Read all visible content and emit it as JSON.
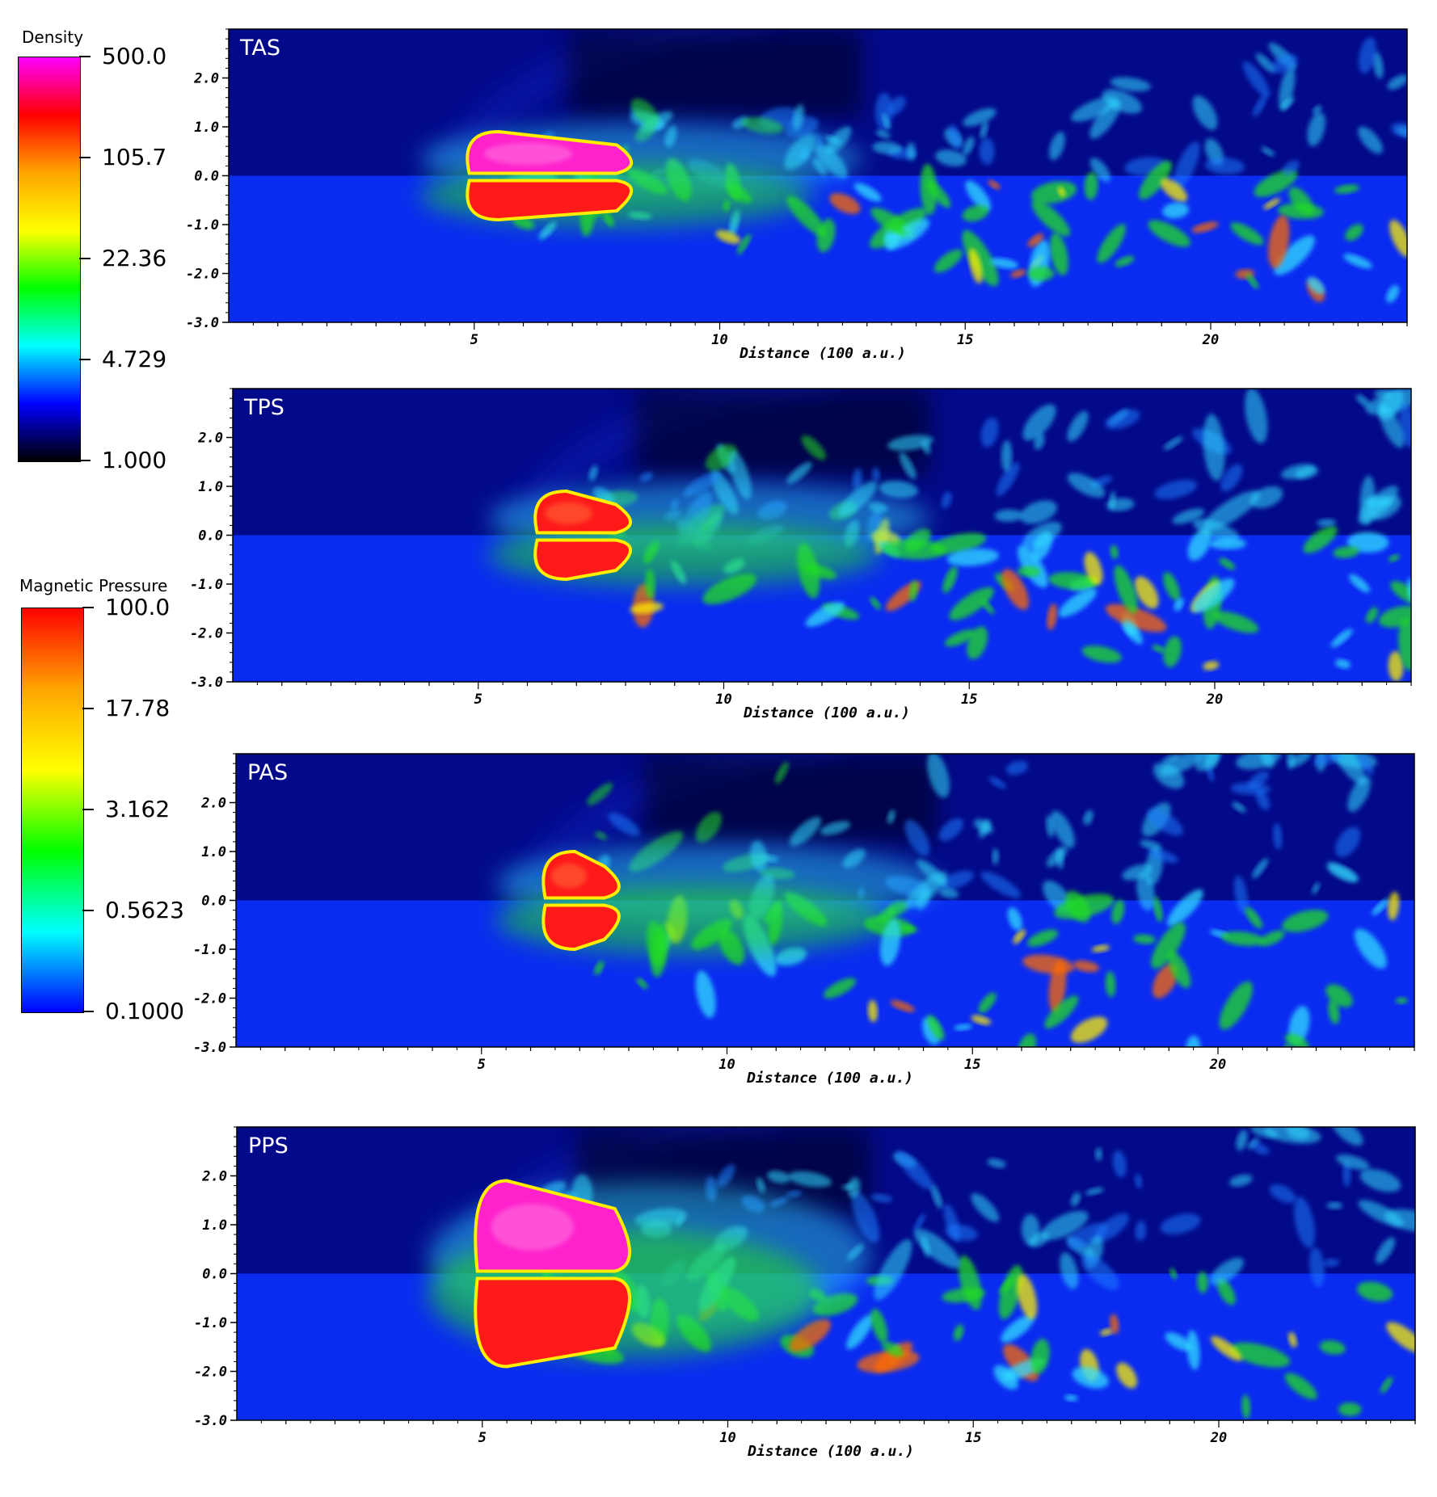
{
  "colorbars": [
    {
      "title": "Density",
      "labels": [
        "500.0",
        "105.7",
        "22.36",
        "4.729",
        "1.000"
      ],
      "stops": [
        "#ff00ff",
        "#ff0000",
        "#ffa500",
        "#ffff00",
        "#00ff00",
        "#00ffff",
        "#0000ff",
        "#000000"
      ]
    },
    {
      "title": "Magnetic Pressure",
      "labels": [
        "100.0",
        "17.78",
        "3.162",
        "0.5623",
        "0.1000"
      ],
      "stops": [
        "#ff0000",
        "#ffa500",
        "#ffff00",
        "#00ff00",
        "#00ffff",
        "#0000ff"
      ]
    }
  ],
  "axis": {
    "y_ticks": [
      "2.0",
      "1.0",
      "0.0",
      "-1.0",
      "-2.0",
      "-3.0"
    ],
    "x_ticks": [
      "5",
      "10",
      "15",
      "20"
    ],
    "x_title": "Distance (100 a.u.)"
  },
  "panels": [
    {
      "label": "TAS"
    },
    {
      "label": "TPS"
    },
    {
      "label": "PAS"
    },
    {
      "label": "PPS"
    }
  ],
  "colors": {
    "upper_background": "#030a8a",
    "lower_background": "#0a2cf0",
    "hot_core": "#ff1a1a",
    "magenta_core": "#ff22cc",
    "green": "#22dd22",
    "cyan": "#33ddff",
    "yellow": "#ffee00"
  }
}
